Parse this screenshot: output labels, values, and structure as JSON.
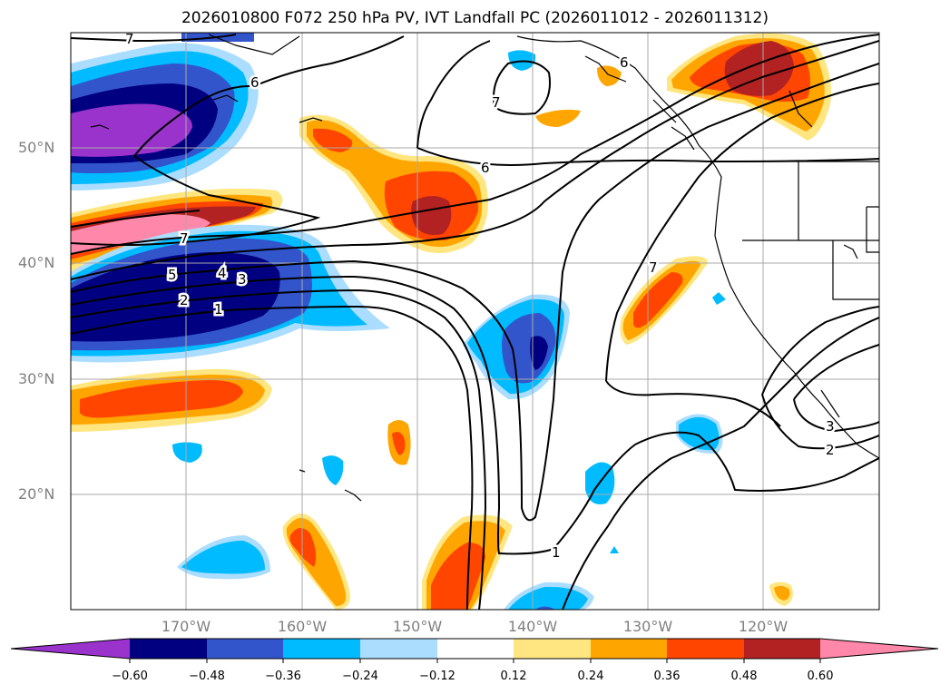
{
  "title": "2026010800 F072 250 hPa PV, IVT Landfall PC (2026011012 - 2026011312)",
  "latitude_labels": [
    "50°N",
    "40°N",
    "30°N",
    "20°N"
  ],
  "longitude_labels": [
    "170°W",
    "160°W",
    "150°W",
    "140°W",
    "130°W",
    "120°W"
  ],
  "colorbar": {
    "tick_labels": [
      "−0.60",
      "−0.48",
      "−0.36",
      "−0.24",
      "−0.12",
      "0.12",
      "0.24",
      "0.36",
      "0.48",
      "0.60"
    ],
    "colors": [
      "#9933cc",
      "#000080",
      "#3355cc",
      "#00bbff",
      "#aaddff",
      "#ffffff",
      "#ffe680",
      "#ffa500",
      "#ff4500",
      "#b22222",
      "#ff88aa"
    ]
  },
  "contour_labels": [
    "6",
    "6",
    "6",
    "7",
    "7",
    "7",
    "5",
    "4",
    "3",
    "2",
    "1",
    "1",
    "3",
    "2",
    "7"
  ],
  "colors": {
    "contour": "#000000",
    "grid": "#aaaaaa",
    "coast": "#000000"
  }
}
